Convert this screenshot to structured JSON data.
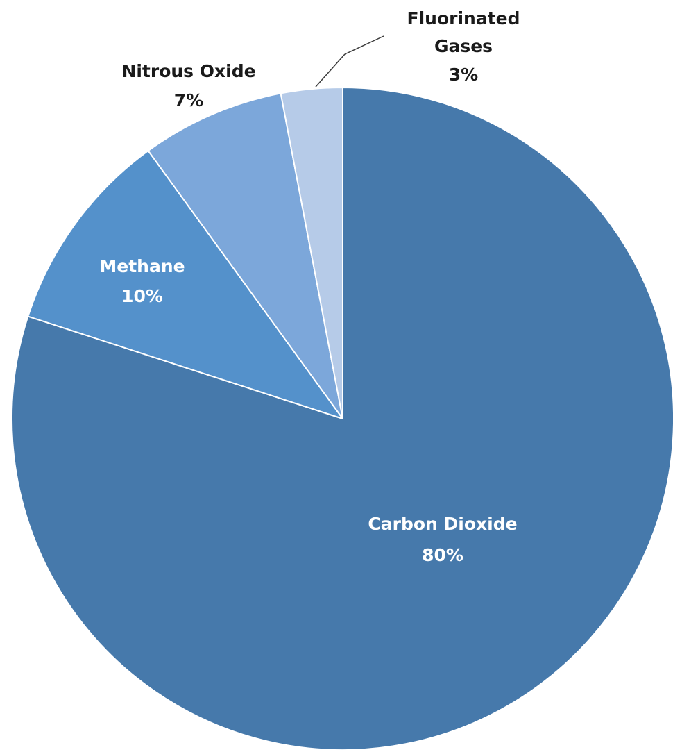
{
  "chart_data": {
    "type": "pie",
    "slices": [
      {
        "label": "Carbon Dioxide",
        "value": 80,
        "value_label": "80%",
        "color": "#4679ab",
        "text_color": "#ffffff"
      },
      {
        "label": "Methane",
        "value": 10,
        "value_label": "10%",
        "color": "#5491cb",
        "text_color": "#ffffff"
      },
      {
        "label": "Nitrous Oxide",
        "value": 7,
        "value_label": "7%",
        "color": "#7ca7da",
        "text_color": "#1a1a1a"
      },
      {
        "label": "Fluorinated Gases",
        "label_lines": [
          "Fluorinated",
          "Gases"
        ],
        "value": 3,
        "value_label": "3%",
        "color": "#b6cbe8",
        "text_color": "#1a1a1a"
      }
    ],
    "start_angle": "12 o'clock",
    "direction": "clockwise",
    "legend": "none"
  }
}
